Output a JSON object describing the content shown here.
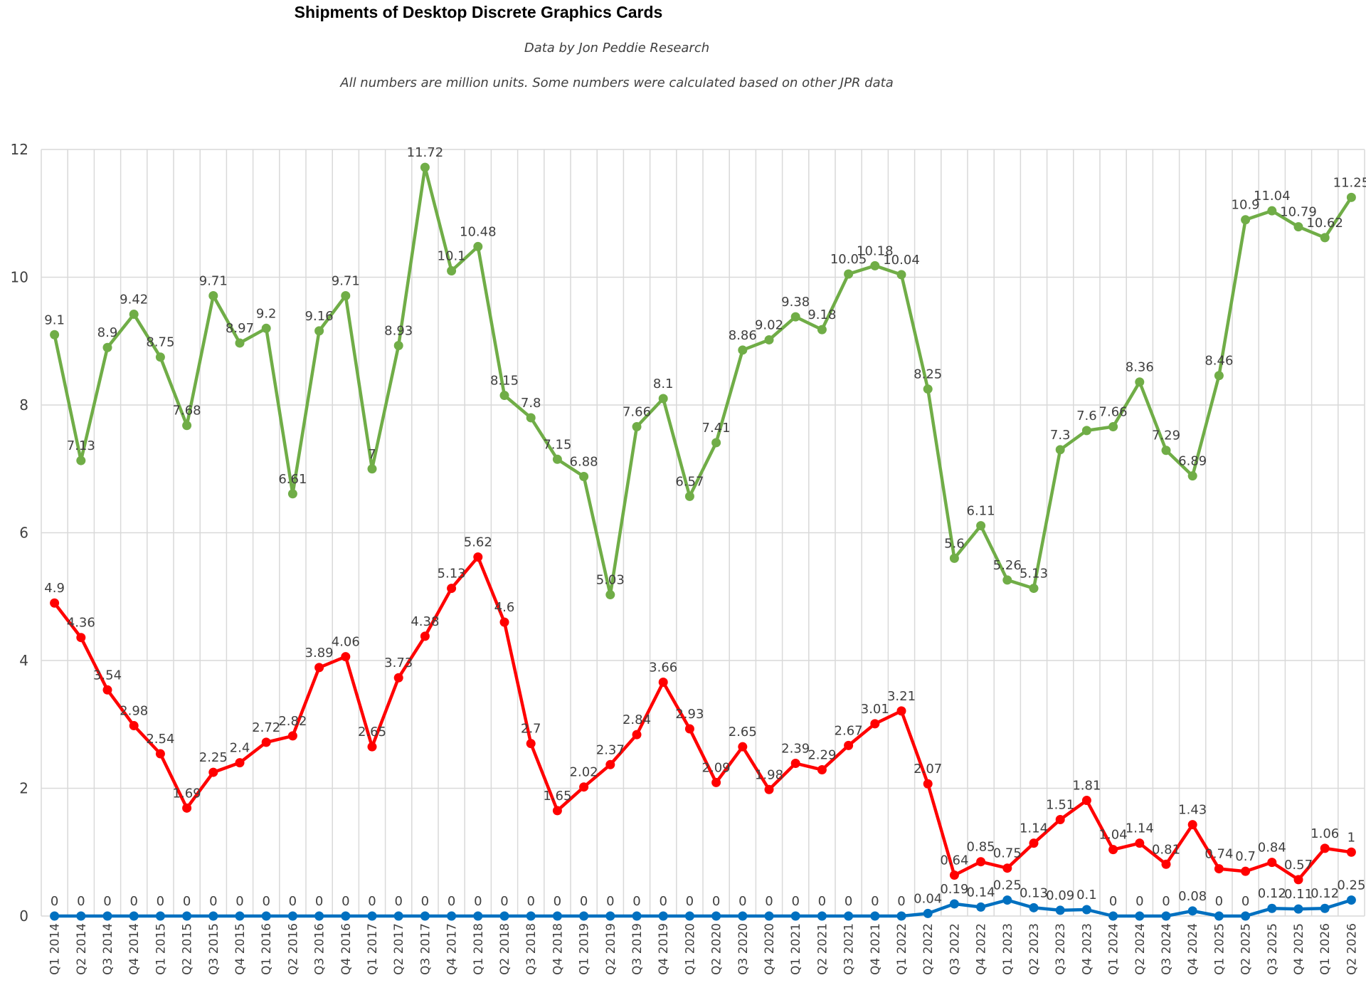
{
  "chart_data": {
    "type": "line",
    "title": "Shipments of Desktop Discrete Graphics Cards",
    "subtitle": "Data by Jon Peddie Research",
    "note": "All numbers are million units. Some numbers were calculated based on other JPR data",
    "ylim": [
      0,
      12
    ],
    "yticks": [
      0,
      2,
      4,
      6,
      8,
      10,
      12
    ],
    "grid": true,
    "categories": [
      "Q1 2014",
      "Q2 2014",
      "Q3 2014",
      "Q4 2014",
      "Q1 2015",
      "Q2 2015",
      "Q3 2015",
      "Q4 2015",
      "Q1 2016",
      "Q2 2016",
      "Q3 2016",
      "Q4 2016",
      "Q1 2017",
      "Q2 2017",
      "Q3 2017",
      "Q4 2017",
      "Q1 2018",
      "Q2 2018",
      "Q3 2018",
      "Q4 2018",
      "Q1 2019",
      "Q2 2019",
      "Q3 2019",
      "Q4 2019",
      "Q1 2020",
      "Q2 2020",
      "Q3 2020",
      "Q4 2020",
      "Q1 2021",
      "Q2 2021",
      "Q3 2021",
      "Q4 2021",
      "Q1 2022",
      "Q2 2022",
      "Q3 2022",
      "Q4 2022",
      "Q1 2023",
      "Q2 2023",
      "Q3 2023",
      "Q4 2023",
      "Q1 2024",
      "Q2 2024",
      "Q3 2024",
      "Q4 2024",
      "Q1 2025",
      "Q2 2025",
      "Q3 2025",
      "Q4 2025",
      "Q1 2026",
      "Q2 2026"
    ],
    "series": [
      {
        "color": "#70ad47",
        "values": [
          9.1,
          7.13,
          8.9,
          9.42,
          8.75,
          7.68,
          9.71,
          8.97,
          9.2,
          6.61,
          9.16,
          9.71,
          7,
          8.93,
          11.72,
          10.1,
          10.48,
          8.15,
          7.8,
          7.15,
          6.88,
          5.03,
          7.66,
          8.1,
          6.57,
          7.41,
          8.86,
          9.02,
          9.38,
          9.18,
          10.05,
          10.18,
          10.04,
          8.25,
          5.6,
          6.11,
          5.26,
          5.13,
          7.3,
          7.6,
          7.66,
          8.36,
          7.29,
          6.89,
          8.46,
          10.9,
          11.04,
          10.79,
          10.62,
          11.25
        ]
      },
      {
        "color": "#ff0000",
        "values": [
          4.9,
          4.36,
          3.54,
          2.98,
          2.54,
          1.69,
          2.25,
          2.4,
          2.72,
          2.82,
          3.89,
          4.06,
          2.65,
          3.73,
          4.38,
          5.13,
          5.62,
          4.6,
          2.7,
          1.65,
          2.02,
          2.37,
          2.84,
          3.66,
          2.93,
          2.09,
          2.65,
          1.98,
          2.39,
          2.29,
          2.67,
          3.01,
          3.21,
          2.07,
          0.64,
          0.85,
          0.75,
          1.14,
          1.51,
          1.81,
          1.04,
          1.14,
          0.81,
          1.43,
          0.74,
          0.7,
          0.84,
          0.57,
          1.06,
          1
        ]
      },
      {
        "color": "#0070c0",
        "values": [
          0,
          0,
          0,
          0,
          0,
          0,
          0,
          0,
          0,
          0,
          0,
          0,
          0,
          0,
          0,
          0,
          0,
          0,
          0,
          0,
          0,
          0,
          0,
          0,
          0,
          0,
          0,
          0,
          0,
          0,
          0,
          0,
          0,
          0.04,
          0.19,
          0.14,
          0.25,
          0.13,
          0.09,
          0.1,
          0,
          0,
          0,
          0.08,
          0,
          0,
          0.12,
          0.11,
          0.12,
          0.25
        ]
      }
    ]
  }
}
